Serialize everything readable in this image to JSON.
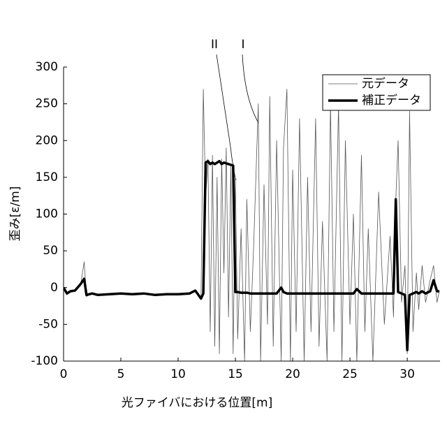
{
  "chart_data": {
    "type": "line",
    "xlabel": "光ファイバにおける位置[m]",
    "ylabel": "歪み[ε/m]",
    "annotations": [
      "II",
      "I"
    ],
    "x": [
      0,
      0.3,
      0.6,
      1,
      1.5,
      1.8,
      2,
      2.5,
      3,
      4,
      5,
      6,
      7,
      8,
      9,
      10,
      11,
      11.5,
      12,
      12.2,
      12.4,
      12.6,
      12.8,
      13,
      13.2,
      13.4,
      13.6,
      13.8,
      14,
      14.2,
      14.4,
      14.6,
      14.8,
      15,
      15.2,
      15.5,
      15.8,
      16,
      16.3,
      16.6,
      17,
      17.2,
      17.5,
      17.8,
      18,
      18.3,
      18.6,
      19,
      19.2,
      19.5,
      19.8,
      20,
      20.3,
      20.6,
      21,
      21.3,
      21.6,
      22,
      22.3,
      22.6,
      23,
      23.3,
      23.6,
      24,
      24.3,
      24.6,
      25,
      25.3,
      25.6,
      26,
      26.3,
      26.6,
      27,
      27.5,
      28,
      28.5,
      28.8,
      29,
      29.2,
      29.5,
      29.8,
      30,
      30.2,
      30.5,
      30.8,
      31,
      31.3,
      31.6,
      32,
      32.3,
      32.6,
      32.8
    ],
    "series": [
      {
        "name": "元データ",
        "color": "#555555",
        "width": 0.8,
        "values": [
          0,
          -8,
          -5,
          -3,
          5,
          35,
          -12,
          -8,
          -10,
          -9,
          -8,
          -9,
          -8,
          -10,
          -8,
          -9,
          -8,
          -3,
          -15,
          270,
          120,
          175,
          -60,
          180,
          -80,
          150,
          -90,
          175,
          20,
          190,
          -40,
          165,
          -90,
          150,
          -70,
          80,
          -100,
          120,
          -60,
          60,
          250,
          -100,
          140,
          -50,
          260,
          -80,
          200,
          -100,
          190,
          270,
          -100,
          160,
          -60,
          230,
          -100,
          150,
          -60,
          230,
          -80,
          90,
          -100,
          250,
          -60,
          250,
          -100,
          200,
          -50,
          100,
          -100,
          180,
          -60,
          80,
          -100,
          130,
          -50,
          70,
          -40,
          120,
          200,
          -20,
          30,
          -90,
          240,
          -60,
          20,
          -30,
          30,
          -20,
          10,
          30,
          -20,
          -5
        ]
      },
      {
        "name": "補正データ",
        "color": "#000000",
        "width": 3.5,
        "values": [
          0,
          -8,
          -5,
          -4,
          5,
          12,
          -10,
          -8,
          -10,
          -9,
          -8,
          -9,
          -8,
          -10,
          -9,
          -9,
          -8,
          -4,
          -15,
          -8,
          170,
          172,
          168,
          170,
          168,
          170,
          172,
          168,
          170,
          169,
          168,
          167,
          166,
          -6,
          -6,
          -7,
          -7,
          -7,
          -8,
          -8,
          -8,
          -8,
          -8,
          -8,
          -8,
          -8,
          -8,
          0,
          -6,
          -8,
          -8,
          -8,
          -8,
          -8,
          -8,
          -8,
          -8,
          -8,
          -8,
          -8,
          -8,
          -8,
          -8,
          -8,
          -8,
          -8,
          -8,
          -8,
          -2,
          -8,
          -8,
          -8,
          -8,
          -8,
          -8,
          -8,
          -8,
          120,
          -6,
          -8,
          -10,
          -85,
          -10,
          -8,
          -6,
          -8,
          -5,
          -8,
          -5,
          10,
          -5,
          -5
        ]
      }
    ],
    "xlim": [
      0,
      32.8
    ],
    "xticks": [
      0,
      5,
      10,
      15,
      20,
      25,
      30
    ],
    "ylim": [
      -100,
      300
    ],
    "yticks": [
      -100,
      -50,
      0,
      50,
      100,
      150,
      200,
      250,
      300
    ],
    "legend": "upper right"
  }
}
